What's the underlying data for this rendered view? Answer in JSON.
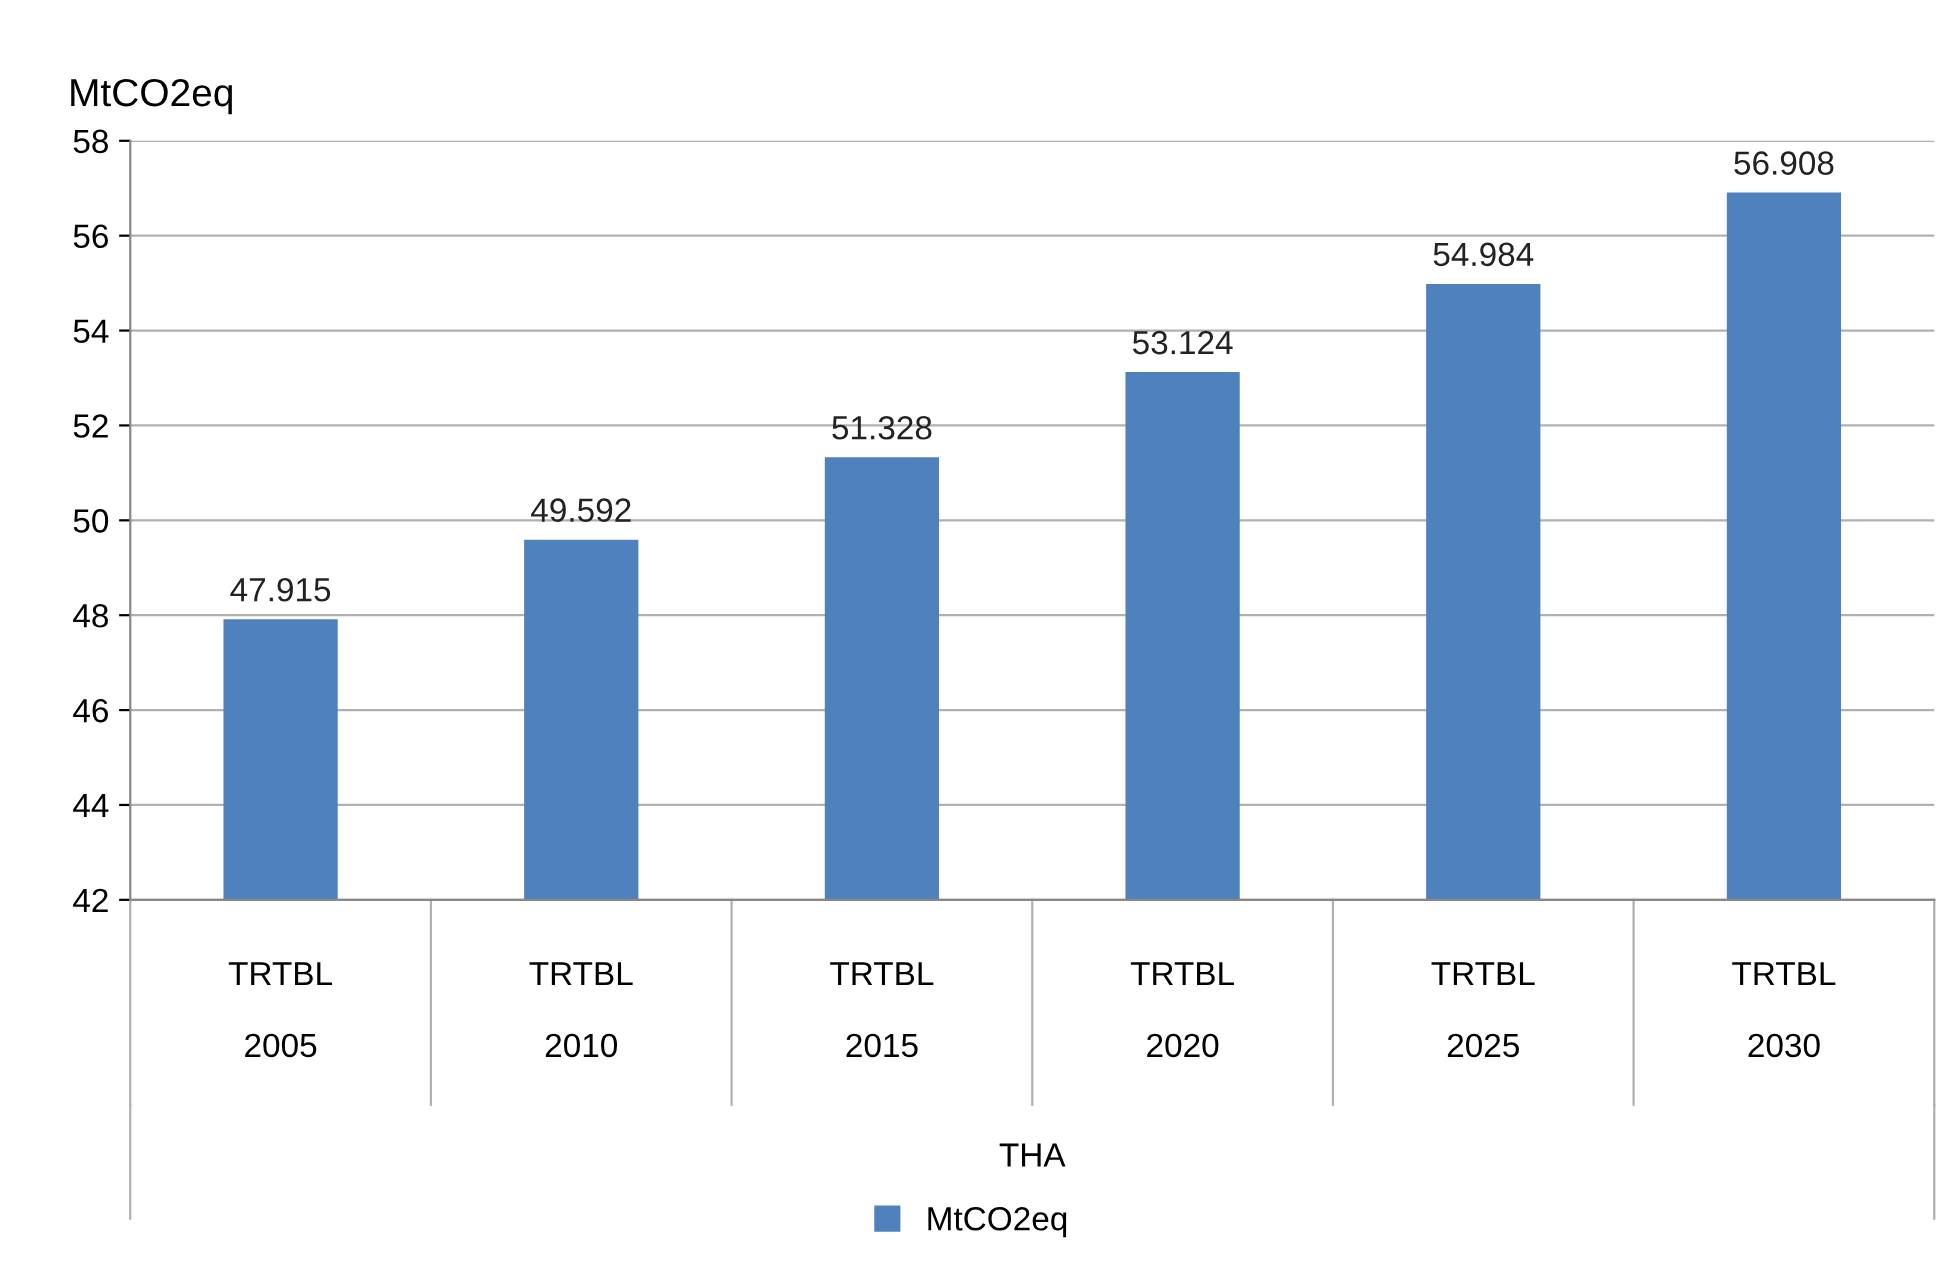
{
  "chart_data": {
    "type": "bar",
    "ylabel": "MtCO2eq",
    "annotations": [
      "THA"
    ],
    "categories": [
      "TRTBL\n\n2005",
      "TRTBL\n\n2010",
      "TRTBL\n\n2015",
      "TRTBL\n\n2020",
      "TRTBL\n\n2025",
      "TRTBL\n\n2030"
    ],
    "series": [
      {
        "name": "MtCO2eq",
        "color": "#4f81bd",
        "values": [
          47.915,
          49.592,
          51.328,
          53.124,
          54.984,
          56.908
        ]
      }
    ],
    "ylim": [
      42,
      58
    ],
    "yticks": [
      42,
      44,
      46,
      48,
      50,
      52,
      54,
      56,
      58
    ],
    "grid": "y",
    "legend": "bottom",
    "data_labels": true
  }
}
